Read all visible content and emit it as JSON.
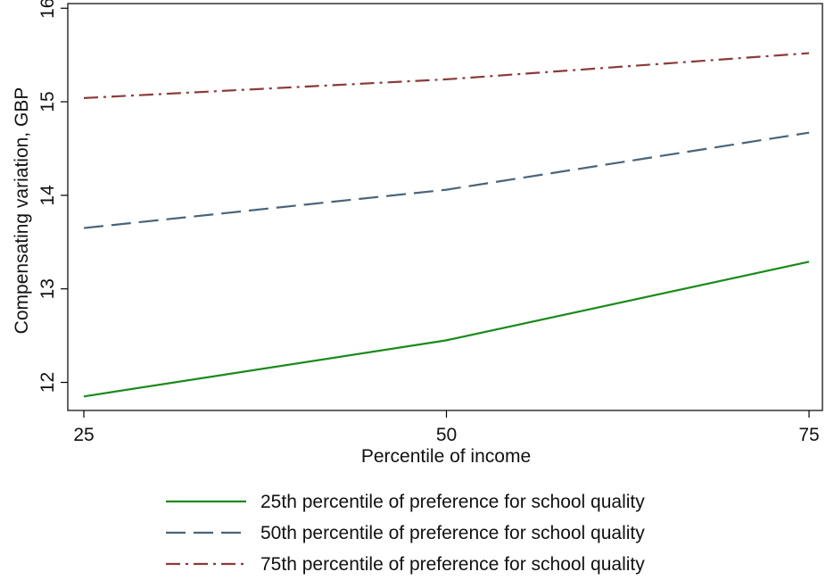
{
  "chart_data": {
    "type": "line",
    "title": "",
    "xlabel": "Percentile of income",
    "ylabel": "Compensating variation, GBP",
    "xlim": [
      25,
      75
    ],
    "ylim": [
      11.7,
      16.05
    ],
    "x_ticks": [
      25,
      50,
      75
    ],
    "y_ticks": [
      12,
      13,
      14,
      15,
      16
    ],
    "grid": false,
    "legend_position": "bottom",
    "x": [
      25,
      50,
      75
    ],
    "series": [
      {
        "name": "25th percentile of preference for school quality",
        "values": [
          11.85,
          12.45,
          13.29
        ],
        "color": "#1a8a1a",
        "dash": "solid"
      },
      {
        "name": "50th percentile of preference for school quality",
        "values": [
          13.65,
          14.06,
          14.67
        ],
        "color": "#4a6478",
        "dash": "long-dash"
      },
      {
        "name": "75th percentile of preference for school quality",
        "values": [
          15.04,
          15.24,
          15.52
        ],
        "color": "#8b3a3a",
        "dash": "dash-dot"
      }
    ]
  }
}
